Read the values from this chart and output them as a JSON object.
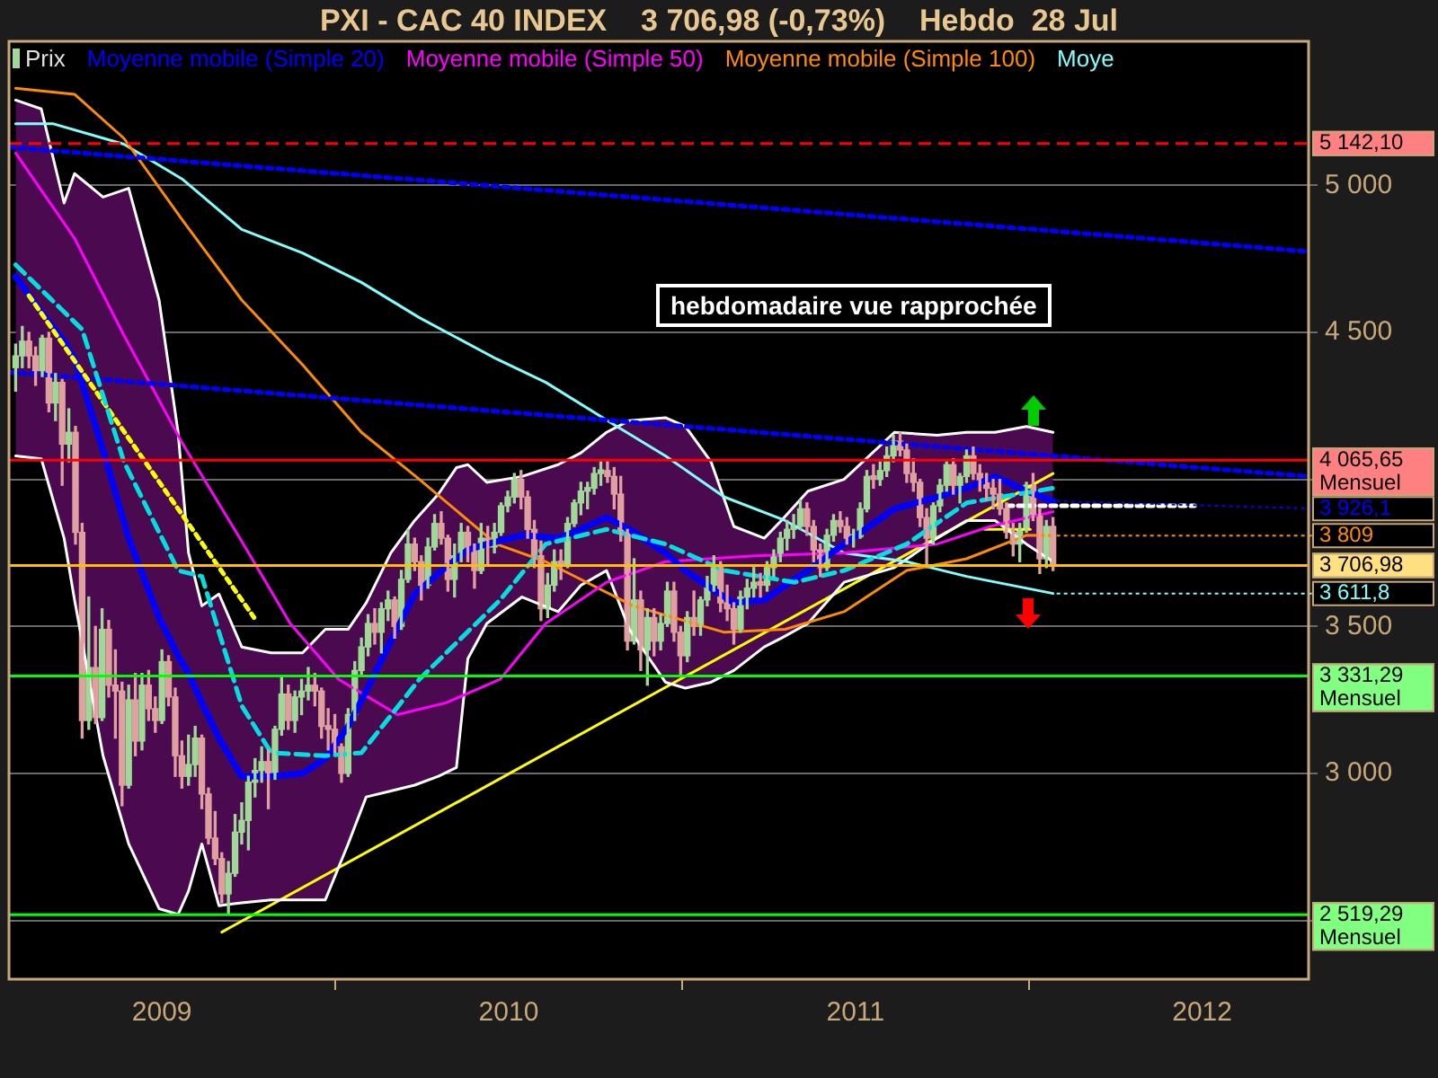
{
  "chart_data": {
    "type": "candlestick",
    "title": "PXI - CAC 40 INDEX    3 706,98 (-0,73%)    Hebdo  28 Jul",
    "xlim": [
      "2008-07-24",
      "2012-04-22"
    ],
    "xticks": [
      {
        "value": "2009-01-01",
        "label": "2009"
      },
      {
        "value": "2010-01-01",
        "label": "2010"
      },
      {
        "value": "2011-01-01",
        "label": "2011"
      },
      {
        "value": "2012-01-01",
        "label": "2012"
      }
    ],
    "ylim": [
      2300,
      5490
    ],
    "yticks": [
      {
        "value": 2500,
        "label": null
      },
      {
        "value": 3000,
        "label": "3 000"
      },
      {
        "value": 3500,
        "label": "3 500"
      },
      {
        "value": 4000,
        "label": null
      },
      {
        "value": 4500,
        "label": "4 500"
      },
      {
        "value": 5000,
        "label": "5 000"
      }
    ],
    "grid": "y",
    "legend": "top",
    "marker": "none",
    "series": [
      {
        "name": "Prix",
        "color": "#e0e0e0",
        "x": [
          "2008-07-31",
          "2008-08-07",
          "2008-08-14",
          "2008-08-21",
          "2008-08-28",
          "2008-09-04",
          "2008-09-11",
          "2008-09-18",
          "2008-09-25",
          "2008-10-02",
          "2008-10-09",
          "2008-10-16",
          "2008-10-23",
          "2008-10-30",
          "2008-11-06",
          "2008-11-13",
          "2008-11-20",
          "2008-11-27",
          "2008-12-04",
          "2008-12-11",
          "2008-12-18",
          "2008-12-25",
          "2009-01-01",
          "2009-01-08",
          "2009-01-15",
          "2009-01-22",
          "2009-01-29",
          "2009-02-05",
          "2009-02-12",
          "2009-02-19",
          "2009-02-26",
          "2009-03-05",
          "2009-03-12",
          "2009-03-19",
          "2009-03-26",
          "2009-04-02",
          "2009-04-09",
          "2009-04-16",
          "2009-04-23",
          "2009-04-30",
          "2009-05-07",
          "2009-05-14",
          "2009-05-21",
          "2009-05-28",
          "2009-06-04",
          "2009-06-11",
          "2009-06-18",
          "2009-06-25",
          "2009-07-02",
          "2009-07-09",
          "2009-07-16",
          "2009-07-23",
          "2009-07-30",
          "2009-08-06",
          "2009-08-13",
          "2009-08-20",
          "2009-08-27",
          "2009-09-03",
          "2009-09-10",
          "2009-09-17",
          "2009-09-24",
          "2009-10-01",
          "2009-10-08",
          "2009-10-15",
          "2009-10-22",
          "2009-10-29",
          "2009-11-05",
          "2009-11-12",
          "2009-11-19",
          "2009-11-26",
          "2009-12-03",
          "2009-12-10",
          "2009-12-17",
          "2009-12-24",
          "2009-12-31",
          "2010-01-07",
          "2010-01-14",
          "2010-01-21",
          "2010-01-28",
          "2010-02-04",
          "2010-02-11",
          "2010-02-18",
          "2010-02-25",
          "2010-03-04",
          "2010-03-11",
          "2010-03-18",
          "2010-03-25",
          "2010-04-01",
          "2010-04-08",
          "2010-04-15",
          "2010-04-22",
          "2010-04-29",
          "2010-05-06",
          "2010-05-13",
          "2010-05-20",
          "2010-05-27",
          "2010-06-03",
          "2010-06-10",
          "2010-06-17",
          "2010-06-24",
          "2010-07-01",
          "2010-07-08",
          "2010-07-15",
          "2010-07-22",
          "2010-07-29",
          "2010-08-05",
          "2010-08-12",
          "2010-08-19",
          "2010-08-26",
          "2010-09-02",
          "2010-09-09",
          "2010-09-16",
          "2010-09-23",
          "2010-09-30",
          "2010-10-07",
          "2010-10-14",
          "2010-10-21",
          "2010-10-28",
          "2010-11-04",
          "2010-11-11",
          "2010-11-18",
          "2010-11-25",
          "2010-12-02",
          "2010-12-09",
          "2010-12-16",
          "2010-12-23",
          "2010-12-30",
          "2011-01-06",
          "2011-01-13",
          "2011-01-20",
          "2011-01-27",
          "2011-02-03",
          "2011-02-10",
          "2011-02-17",
          "2011-02-24",
          "2011-03-03",
          "2011-03-10",
          "2011-03-17",
          "2011-03-24",
          "2011-03-31",
          "2011-04-07",
          "2011-04-14",
          "2011-04-21",
          "2011-04-28",
          "2011-05-05",
          "2011-05-12",
          "2011-05-19",
          "2011-05-26",
          "2011-06-02",
          "2011-06-09",
          "2011-06-16",
          "2011-06-23",
          "2011-06-30",
          "2011-07-07",
          "2011-07-14",
          "2011-07-21",
          "2011-07-28"
        ],
        "ohlc": [
          [
            4380,
            4460,
            4300,
            4420
          ],
          [
            4420,
            4520,
            4380,
            4470
          ],
          [
            4470,
            4500,
            4380,
            4420
          ],
          [
            4420,
            4450,
            4320,
            4370
          ],
          [
            4370,
            4490,
            4350,
            4480
          ],
          [
            4480,
            4500,
            4230,
            4260
          ],
          [
            4260,
            4360,
            4200,
            4330
          ],
          [
            4330,
            4340,
            3980,
            4120
          ],
          [
            4120,
            4240,
            4060,
            4160
          ],
          [
            4160,
            4180,
            3780,
            3820
          ],
          [
            3820,
            3850,
            3120,
            3180
          ],
          [
            3180,
            3600,
            3150,
            3360
          ],
          [
            3360,
            3500,
            3170,
            3190
          ],
          [
            3190,
            3560,
            3180,
            3490
          ],
          [
            3490,
            3520,
            3260,
            3300
          ],
          [
            3300,
            3420,
            3120,
            3280
          ],
          [
            3280,
            3310,
            2890,
            2960
          ],
          [
            2960,
            3300,
            2950,
            3250
          ],
          [
            3250,
            3340,
            3060,
            3110
          ],
          [
            3110,
            3340,
            3080,
            3300
          ],
          [
            3300,
            3350,
            3180,
            3220
          ],
          [
            3220,
            3260,
            3140,
            3180
          ],
          [
            3180,
            3420,
            3170,
            3380
          ],
          [
            3380,
            3400,
            3230,
            3260
          ],
          [
            3260,
            3290,
            2990,
            3060
          ],
          [
            3060,
            3110,
            2950,
            2990
          ],
          [
            2990,
            3130,
            2960,
            3030
          ],
          [
            3030,
            3160,
            2990,
            3120
          ],
          [
            3120,
            3130,
            2880,
            2930
          ],
          [
            2930,
            2950,
            2760,
            2780
          ],
          [
            2780,
            2870,
            2690,
            2710
          ],
          [
            2710,
            2730,
            2560,
            2590
          ],
          [
            2590,
            2700,
            2520,
            2660
          ],
          [
            2660,
            2860,
            2650,
            2800
          ],
          [
            2800,
            2900,
            2760,
            2840
          ],
          [
            2840,
            2990,
            2740,
            2970
          ],
          [
            2970,
            3050,
            2920,
            3010
          ],
          [
            3010,
            3090,
            2970,
            3040
          ],
          [
            3040,
            3080,
            2880,
            2990
          ],
          [
            2990,
            3160,
            2980,
            3150
          ],
          [
            3150,
            3330,
            3130,
            3270
          ],
          [
            3270,
            3300,
            3150,
            3180
          ],
          [
            3180,
            3280,
            3140,
            3260
          ],
          [
            3260,
            3320,
            3200,
            3280
          ],
          [
            3280,
            3360,
            3250,
            3300
          ],
          [
            3300,
            3340,
            3230,
            3280
          ],
          [
            3280,
            3290,
            3120,
            3160
          ],
          [
            3160,
            3220,
            3080,
            3150
          ],
          [
            3150,
            3200,
            3070,
            3090
          ],
          [
            3090,
            3100,
            2970,
            3000
          ],
          [
            3000,
            3220,
            2990,
            3200
          ],
          [
            3200,
            3380,
            3180,
            3350
          ],
          [
            3350,
            3460,
            3330,
            3430
          ],
          [
            3430,
            3540,
            3400,
            3510
          ],
          [
            3510,
            3560,
            3440,
            3480
          ],
          [
            3480,
            3580,
            3410,
            3560
          ],
          [
            3560,
            3620,
            3520,
            3590
          ],
          [
            3590,
            3600,
            3460,
            3500
          ],
          [
            3500,
            3690,
            3490,
            3660
          ],
          [
            3660,
            3830,
            3650,
            3780
          ],
          [
            3780,
            3800,
            3690,
            3720
          ],
          [
            3720,
            3740,
            3590,
            3640
          ],
          [
            3640,
            3800,
            3630,
            3770
          ],
          [
            3770,
            3880,
            3760,
            3850
          ],
          [
            3850,
            3890,
            3780,
            3800
          ],
          [
            3800,
            3810,
            3620,
            3660
          ],
          [
            3660,
            3780,
            3600,
            3740
          ],
          [
            3740,
            3850,
            3720,
            3820
          ],
          [
            3820,
            3840,
            3720,
            3760
          ],
          [
            3760,
            3780,
            3630,
            3690
          ],
          [
            3690,
            3850,
            3680,
            3800
          ],
          [
            3800,
            3840,
            3710,
            3770
          ],
          [
            3770,
            3850,
            3750,
            3820
          ],
          [
            3820,
            3920,
            3810,
            3910
          ],
          [
            3910,
            3960,
            3890,
            3940
          ],
          [
            3940,
            4020,
            3920,
            4000
          ],
          [
            4000,
            4030,
            3900,
            3940
          ],
          [
            3940,
            3960,
            3800,
            3830
          ],
          [
            3830,
            3860,
            3700,
            3740
          ],
          [
            3740,
            3790,
            3520,
            3560
          ],
          [
            3560,
            3680,
            3530,
            3640
          ],
          [
            3640,
            3760,
            3620,
            3720
          ],
          [
            3720,
            3760,
            3660,
            3710
          ],
          [
            3710,
            3870,
            3700,
            3850
          ],
          [
            3850,
            3930,
            3840,
            3920
          ],
          [
            3920,
            3990,
            3880,
            3960
          ],
          [
            3960,
            3990,
            3900,
            3970
          ],
          [
            3970,
            4040,
            3950,
            4020
          ],
          [
            4020,
            4060,
            3980,
            4030
          ],
          [
            4030,
            4065,
            3990,
            4010
          ],
          [
            4010,
            4040,
            3900,
            3950
          ],
          [
            3950,
            4010,
            3790,
            3820
          ],
          [
            3820,
            3830,
            3420,
            3450
          ],
          [
            3450,
            3730,
            3440,
            3590
          ],
          [
            3590,
            3620,
            3350,
            3420
          ],
          [
            3420,
            3560,
            3300,
            3530
          ],
          [
            3530,
            3560,
            3400,
            3450
          ],
          [
            3450,
            3540,
            3420,
            3510
          ],
          [
            3510,
            3650,
            3500,
            3620
          ],
          [
            3620,
            3650,
            3450,
            3480
          ],
          [
            3480,
            3500,
            3330,
            3400
          ],
          [
            3400,
            3550,
            3380,
            3530
          ],
          [
            3530,
            3620,
            3470,
            3500
          ],
          [
            3500,
            3600,
            3470,
            3590
          ],
          [
            3590,
            3670,
            3570,
            3640
          ],
          [
            3640,
            3740,
            3620,
            3700
          ],
          [
            3700,
            3720,
            3550,
            3580
          ],
          [
            3580,
            3640,
            3520,
            3560
          ],
          [
            3560,
            3580,
            3440,
            3490
          ],
          [
            3490,
            3620,
            3480,
            3600
          ],
          [
            3600,
            3660,
            3560,
            3630
          ],
          [
            3630,
            3700,
            3600,
            3650
          ],
          [
            3650,
            3680,
            3600,
            3640
          ],
          [
            3640,
            3720,
            3620,
            3700
          ],
          [
            3700,
            3760,
            3670,
            3740
          ],
          [
            3740,
            3820,
            3720,
            3800
          ],
          [
            3800,
            3860,
            3760,
            3830
          ],
          [
            3830,
            3880,
            3800,
            3840
          ],
          [
            3840,
            3930,
            3830,
            3900
          ],
          [
            3900,
            3920,
            3810,
            3840
          ],
          [
            3840,
            3860,
            3720,
            3760
          ],
          [
            3760,
            3780,
            3670,
            3700
          ],
          [
            3700,
            3830,
            3690,
            3810
          ],
          [
            3810,
            3880,
            3790,
            3860
          ],
          [
            3860,
            3890,
            3820,
            3840
          ],
          [
            3840,
            3870,
            3780,
            3800
          ],
          [
            3800,
            3830,
            3770,
            3805
          ],
          [
            3805,
            3920,
            3800,
            3900
          ],
          [
            3900,
            4030,
            3890,
            4010
          ],
          [
            4010,
            4050,
            3970,
            4000
          ],
          [
            4000,
            4060,
            3980,
            4030
          ],
          [
            4030,
            4110,
            4010,
            4080
          ],
          [
            4080,
            4150,
            4060,
            4130
          ],
          [
            4130,
            4160,
            4080,
            4100
          ],
          [
            4100,
            4120,
            3990,
            4020
          ],
          [
            4020,
            4070,
            3960,
            3990
          ],
          [
            3990,
            4000,
            3840,
            3870
          ],
          [
            3870,
            3900,
            3700,
            3800
          ],
          [
            3800,
            3920,
            3780,
            3910
          ],
          [
            3910,
            4000,
            3890,
            3980
          ],
          [
            3980,
            4060,
            3960,
            4050
          ],
          [
            4050,
            4070,
            3950,
            3980
          ],
          [
            3980,
            4020,
            3920,
            4010
          ],
          [
            4010,
            4100,
            3990,
            4080
          ],
          [
            4080,
            4110,
            4000,
            4020
          ],
          [
            4020,
            4050,
            3960,
            3990
          ],
          [
            3990,
            4020,
            3930,
            3970
          ],
          [
            3970,
            4000,
            3900,
            3950
          ],
          [
            3950,
            4000,
            3880,
            3900
          ],
          [
            3900,
            3920,
            3800,
            3820
          ],
          [
            3820,
            3850,
            3740,
            3780
          ],
          [
            3780,
            3850,
            3720,
            3830
          ],
          [
            3830,
            3990,
            3820,
            3980
          ],
          [
            3980,
            4020,
            3860,
            3880
          ],
          [
            3880,
            3900,
            3680,
            3730
          ],
          [
            3730,
            3860,
            3700,
            3840
          ],
          [
            3840,
            3870,
            3690,
            3706.98
          ]
        ],
        "colors": [
          "#a0d898",
          "#a0d898",
          "#e0a0a0",
          "#e0a0a0",
          "#a0d898",
          "#e0a0a0",
          "#a0d898",
          "#e0a0a0",
          "#a0d898",
          "#e0a0a0",
          "#e0a0a0",
          "#a0d898",
          "#e0a0a0",
          "#a0d898",
          "#e0a0a0",
          "#e0a0a0",
          "#e0a0a0",
          "#a0d898",
          "#e0a0a0",
          "#a0d898",
          "#e0a0a0",
          "#e0a0a0",
          "#a0d898",
          "#e0a0a0",
          "#e0a0a0",
          "#e0a0a0",
          "#a0d898",
          "#a0d898",
          "#e0a0a0",
          "#e0a0a0",
          "#e0a0a0",
          "#e0a0a0",
          "#a0d898",
          "#a0d898",
          "#a0d898",
          "#a0d898",
          "#a0d898",
          "#a0d898",
          "#e0a0a0",
          "#a0d898",
          "#a0d898",
          "#e0a0a0",
          "#a0d898",
          "#a0d898",
          "#a0d898",
          "#e0a0a0",
          "#e0a0a0",
          "#e0a0a0",
          "#e0a0a0",
          "#e0a0a0",
          "#a0d898",
          "#a0d898",
          "#a0d898",
          "#a0d898",
          "#e0a0a0",
          "#a0d898",
          "#a0d898",
          "#e0a0a0",
          "#a0d898",
          "#a0d898",
          "#e0a0a0",
          "#e0a0a0",
          "#a0d898",
          "#a0d898",
          "#e0a0a0",
          "#e0a0a0",
          "#a0d898",
          "#a0d898",
          "#e0a0a0",
          "#e0a0a0",
          "#a0d898",
          "#e0a0a0",
          "#a0d898",
          "#a0d898",
          "#a0d898",
          "#a0d898",
          "#e0a0a0",
          "#e0a0a0",
          "#e0a0a0",
          "#e0a0a0",
          "#a0d898",
          "#a0d898",
          "#e0a0a0",
          "#a0d898",
          "#a0d898",
          "#a0d898",
          "#a0d898",
          "#a0d898",
          "#a0d898",
          "#e0a0a0",
          "#e0a0a0",
          "#e0a0a0",
          "#e0a0a0",
          "#a0d898",
          "#e0a0a0",
          "#a0d898",
          "#e0a0a0",
          "#a0d898",
          "#a0d898",
          "#e0a0a0",
          "#e0a0a0",
          "#a0d898",
          "#e0a0a0",
          "#a0d898",
          "#a0d898",
          "#a0d898",
          "#e0a0a0",
          "#e0a0a0",
          "#e0a0a0",
          "#a0d898",
          "#a0d898",
          "#a0d898",
          "#e0a0a0",
          "#a0d898",
          "#a0d898",
          "#a0d898",
          "#a0d898",
          "#a0d898",
          "#a0d898",
          "#e0a0a0",
          "#e0a0a0",
          "#e0a0a0",
          "#a0d898",
          "#a0d898",
          "#e0a0a0",
          "#e0a0a0",
          "#a0d898",
          "#a0d898",
          "#a0d898",
          "#e0a0a0",
          "#a0d898",
          "#a0d898",
          "#a0d898",
          "#e0a0a0",
          "#e0a0a0",
          "#e0a0a0",
          "#e0a0a0",
          "#e0a0a0",
          "#a0d898",
          "#a0d898",
          "#a0d898",
          "#e0a0a0",
          "#a0d898",
          "#a0d898",
          "#e0a0a0",
          "#e0a0a0",
          "#e0a0a0",
          "#e0a0a0",
          "#e0a0a0",
          "#e0a0a0",
          "#e0a0a0",
          "#a0d898",
          "#a0d898",
          "#e0a0a0",
          "#e0a0a0",
          "#a0d898",
          "#e0a0a0"
        ]
      },
      {
        "name": "Moyenne mobile (Simple 20)",
        "type": "line",
        "color": "#0000ff",
        "x": [
          "2008-07-31",
          "2008-08-27",
          "2008-09-20",
          "2008-10-01",
          "2008-10-31",
          "2008-11-27",
          "2008-12-29",
          "2009-01-18",
          "2009-01-29",
          "2009-02-12",
          "2009-03-02",
          "2009-03-26",
          "2009-04-26",
          "2009-05-29",
          "2009-06-22",
          "2009-07-16",
          "2009-08-04",
          "2009-08-30",
          "2009-09-24",
          "2009-10-19",
          "2009-11-07",
          "2009-11-19",
          "2009-12-09",
          "2010-01-15",
          "2010-02-22",
          "2010-03-18",
          "2010-04-14",
          "2010-05-08",
          "2010-06-15",
          "2010-07-06",
          "2010-08-02",
          "2010-08-26",
          "2010-09-27",
          "2010-10-15",
          "2010-11-12",
          "2010-12-20",
          "2011-02-11",
          "2011-03-28",
          "2011-04-28",
          "2011-05-28",
          "2011-06-30",
          "2011-07-28"
        ],
        "values": [
          4690,
          4570,
          4470,
          4410,
          4100,
          3800,
          3530,
          3400,
          3340,
          3240,
          3120,
          2990,
          2990,
          3000,
          3050,
          3160,
          3280,
          3450,
          3610,
          3680,
          3730,
          3760,
          3780,
          3810,
          3800,
          3830,
          3870,
          3830,
          3750,
          3690,
          3630,
          3580,
          3590,
          3630,
          3690,
          3780,
          3900,
          3940,
          3970,
          4010,
          3960,
          3926
        ],
        "lower": [
          4080,
          4070,
          3800,
          3590,
          3060,
          2760,
          2540,
          2520,
          2600,
          2760,
          2550,
          2560,
          2570,
          2570,
          2570,
          2760,
          2920,
          2940,
          2960,
          2990,
          3020,
          3390,
          3510,
          3600,
          3550,
          3640,
          3690,
          3490,
          3310,
          3290,
          3310,
          3350,
          3430,
          3460,
          3510,
          3650,
          3700,
          3800,
          3860,
          3860,
          3780,
          3720
        ],
        "upper": [
          5290,
          5260,
          4940,
          5040,
          4960,
          4990,
          4610,
          4160,
          3750,
          3570,
          3610,
          3430,
          3410,
          3410,
          3490,
          3490,
          3580,
          3750,
          3860,
          3950,
          4040,
          4050,
          3990,
          4010,
          4050,
          4090,
          4160,
          4200,
          4210,
          4180,
          4060,
          3840,
          3800,
          3860,
          3960,
          4000,
          4160,
          4150,
          4160,
          4160,
          4180,
          4160
        ]
      },
      {
        "name": "Moyenne mobile (Simple 50)",
        "type": "line",
        "color": "#ff00ff",
        "x": [
          "2008-07-31",
          "2008-10-01",
          "2008-11-22",
          "2009-01-23",
          "2009-03-24",
          "2009-05-16",
          "2009-07-06",
          "2009-09-06",
          "2009-10-27",
          "2009-12-23",
          "2010-02-09",
          "2010-04-14",
          "2010-06-15",
          "2010-09-17",
          "2010-12-20",
          "2011-03-28",
          "2011-05-23",
          "2011-07-28"
        ],
        "values": [
          5110,
          4820,
          4490,
          4120,
          3800,
          3510,
          3320,
          3200,
          3240,
          3320,
          3510,
          3650,
          3720,
          3740,
          3750,
          3780,
          3840,
          3890
        ]
      },
      {
        "name": "Moyenne mobile (Simple 100)",
        "type": "line",
        "color": "#ff8c00",
        "x": [
          "2008-07-31",
          "2008-10-01",
          "2008-11-22",
          "2009-01-23",
          "2009-03-26",
          "2009-05-29",
          "2009-07-30",
          "2009-09-29",
          "2009-12-19",
          "2010-02-09",
          "2010-05-12",
          "2010-08-16",
          "2010-10-19",
          "2010-12-20",
          "2011-02-24",
          "2011-04-28",
          "2011-06-30",
          "2011-07-28"
        ],
        "values": [
          5330,
          5310,
          5160,
          4880,
          4610,
          4390,
          4160,
          4000,
          3780,
          3720,
          3570,
          3480,
          3490,
          3550,
          3690,
          3730,
          3810,
          3809
        ]
      },
      {
        "name": "Moye",
        "type": "line",
        "color": "#80ffff",
        "x": [
          "2008-07-31",
          "2008-09-08",
          "2008-11-22",
          "2009-01-23",
          "2009-03-26",
          "2009-05-29",
          "2009-07-30",
          "2009-09-29",
          "2009-12-19",
          "2010-02-09",
          "2010-04-25",
          "2010-06-15",
          "2010-08-16",
          "2010-10-19",
          "2010-12-20",
          "2011-02-24",
          "2011-04-28",
          "2011-07-28"
        ],
        "values": [
          5210,
          5210,
          5140,
          5020,
          4850,
          4770,
          4670,
          4550,
          4410,
          4330,
          4180,
          4080,
          3940,
          3860,
          3750,
          3720,
          3670,
          3612
        ]
      },
      {
        "type": "line",
        "color": "#ffffff",
        "x": [
          "2008-07-31",
          "2008-08-27",
          "2008-09-20",
          "2008-10-01",
          "2008-10-31",
          "2008-11-27",
          "2008-12-29",
          "2009-01-18",
          "2009-01-29",
          "2009-02-12",
          "2009-03-02",
          "2009-03-26",
          "2009-04-26",
          "2009-05-29",
          "2009-06-22",
          "2009-07-16",
          "2009-08-04",
          "2009-08-30",
          "2009-09-24",
          "2009-10-19",
          "2009-11-07",
          "2009-11-19",
          "2009-12-09",
          "2010-01-15",
          "2010-02-22",
          "2010-03-18",
          "2010-04-14",
          "2010-05-08",
          "2010-06-15",
          "2010-07-06",
          "2010-08-02",
          "2010-08-26",
          "2010-09-27",
          "2010-10-15",
          "2010-11-12",
          "2010-12-20",
          "2011-02-11",
          "2011-03-28",
          "2011-04-28",
          "2011-05-28",
          "2011-06-30",
          "2011-07-28"
        ],
        "values": [
          5290,
          5260,
          4940,
          5040,
          4960,
          4990,
          4610,
          4160,
          3750,
          3570,
          3610,
          3430,
          3410,
          3410,
          3490,
          3490,
          3580,
          3750,
          3860,
          3950,
          4040,
          4050,
          3990,
          4010,
          4050,
          4090,
          4160,
          4200,
          4210,
          4180,
          4060,
          3840,
          3800,
          3860,
          3960,
          4000,
          4160,
          4150,
          4160,
          4160,
          4180,
          4160
        ]
      },
      {
        "type": "line",
        "color": "#ffffff",
        "x": [
          "2008-07-31",
          "2008-08-27",
          "2008-09-20",
          "2008-10-01",
          "2008-10-31",
          "2008-11-27",
          "2008-12-29",
          "2009-01-18",
          "2009-01-29",
          "2009-02-12",
          "2009-03-02",
          "2009-03-26",
          "2009-04-26",
          "2009-05-29",
          "2009-06-22",
          "2009-07-16",
          "2009-08-04",
          "2009-08-30",
          "2009-09-24",
          "2009-10-19",
          "2009-11-07",
          "2009-11-19",
          "2009-12-09",
          "2010-01-15",
          "2010-02-22",
          "2010-03-18",
          "2010-04-14",
          "2010-05-08",
          "2010-06-15",
          "2010-07-06",
          "2010-08-02",
          "2010-08-26",
          "2010-09-27",
          "2010-10-15",
          "2010-11-12",
          "2010-12-20",
          "2011-02-11",
          "2011-03-28",
          "2011-04-28",
          "2011-05-28",
          "2011-06-30",
          "2011-07-28"
        ],
        "values": [
          4080,
          4070,
          3800,
          3590,
          3060,
          2760,
          2540,
          2520,
          2600,
          2760,
          2550,
          2560,
          2570,
          2570,
          2570,
          2760,
          2920,
          2940,
          2960,
          2990,
          3020,
          3390,
          3510,
          3600,
          3550,
          3640,
          3690,
          3490,
          3310,
          3290,
          3310,
          3350,
          3430,
          3460,
          3510,
          3650,
          3700,
          3800,
          3860,
          3860,
          3780,
          3720
        ]
      },
      {
        "type": "line",
        "color": "#00e0e0",
        "line_style": "dashed",
        "x": [
          "2008-07-31",
          "2008-10-09",
          "2008-11-22",
          "2009-01-18",
          "2009-02-12",
          "2009-03-26",
          "2009-04-26",
          "2009-06-22",
          "2009-07-30",
          "2009-09-29",
          "2009-12-23",
          "2010-02-09",
          "2010-04-14",
          "2010-06-15",
          "2010-08-16",
          "2010-10-29",
          "2010-12-20",
          "2011-02-24",
          "2011-04-28",
          "2011-07-28"
        ],
        "values": [
          4730,
          4510,
          4060,
          3690,
          3670,
          3230,
          3070,
          3060,
          3070,
          3320,
          3590,
          3780,
          3830,
          3780,
          3690,
          3650,
          3690,
          3780,
          3920,
          3970
        ]
      },
      {
        "type": "line",
        "color": "#ffff00",
        "x": [
          "2009-03-05",
          "2011-07-28"
        ],
        "values": [
          2460,
          4020
        ]
      },
      {
        "type": "line",
        "color": "#ffff00",
        "line_style": "dotted",
        "x": [
          "2008-08-14",
          "2009-04-08"
        ],
        "values": [
          4625,
          3530
        ]
      },
      {
        "type": "line",
        "color": "#0000ff",
        "line_style": "dotted",
        "x": [
          "2008-07-24",
          "2012-04-22"
        ],
        "values": [
          5130,
          4775
        ]
      },
      {
        "type": "line",
        "color": "#0000ff",
        "line_style": "dotted",
        "x": [
          "2008-07-24",
          "2012-04-22"
        ],
        "values": [
          4365,
          4010
        ]
      },
      {
        "type": "line",
        "color": "#ffffff",
        "line_style": "dotted",
        "x": [
          "2011-06-10",
          "2011-12-24"
        ],
        "values": [
          3910,
          3910
        ]
      },
      {
        "type": "line",
        "color": "#ffff00",
        "x": [
          "2011-05-17",
          "2011-07-04"
        ],
        "values": [
          3830,
          3830
        ]
      }
    ],
    "ref_lines": [
      {
        "axis": "y",
        "value": 5142.1,
        "label": "5 142,10",
        "color": "#ff0000",
        "line_style": "dashed"
      },
      {
        "axis": "y",
        "value": 4065.65,
        "label": "4 065,65\nMensuel",
        "color": "#ff0000",
        "line_style": "solid"
      },
      {
        "axis": "y",
        "value": 3706.98,
        "label": "3 706,98",
        "color": "#ffc000",
        "line_style": "solid"
      },
      {
        "axis": "y",
        "value": 3331.29,
        "label": "3 331,29\nMensuel",
        "color": "#00ff00",
        "line_style": "solid"
      },
      {
        "axis": "y",
        "value": 2519.29,
        "label": "2 519,29\nMensuel",
        "color": "#00ff00",
        "line_style": "solid"
      }
    ],
    "annotations": [
      "hebdomadaire vue rapprochée",
      {
        "text": "3 926,1",
        "x": "2011-07-28",
        "y": 3926.1
      },
      {
        "text": "3 809",
        "x": "2011-07-28",
        "y": 3809
      },
      {
        "text": "3 611,8",
        "x": "2011-07-28",
        "y": 3611.8
      }
    ]
  }
}
